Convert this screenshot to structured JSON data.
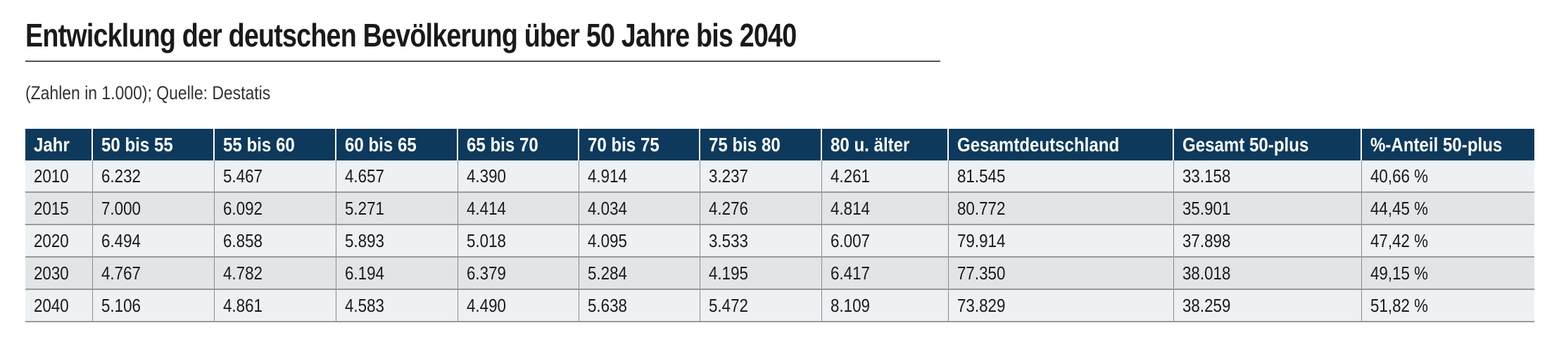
{
  "title": "Entwicklung der deutschen Bevölkerung über 50 Jahre bis 2040",
  "subtitle": "(Zahlen in 1.000); Quelle: Destatis",
  "table": {
    "headers": [
      "Jahr",
      "50 bis 55",
      "55 bis 60",
      "60 bis 65",
      "65 bis 70",
      "70 bis 75",
      "75 bis 80",
      "80 u. älter",
      "Gesamtdeutschland",
      "Gesamt 50-plus",
      "%-Anteil 50-plus"
    ],
    "rows": [
      [
        "2010",
        "6.232",
        "5.467",
        "4.657",
        "4.390",
        "4.914",
        "3.237",
        "4.261",
        "81.545",
        "33.158",
        "40,66 %"
      ],
      [
        "2015",
        "7.000",
        "6.092",
        "5.271",
        "4.414",
        "4.034",
        "4.276",
        "4.814",
        "80.772",
        "35.901",
        "44,45 %"
      ],
      [
        "2020",
        "6.494",
        "6.858",
        "5.893",
        "5.018",
        "4.095",
        "3.533",
        "6.007",
        "79.914",
        "37.898",
        "47,42 %"
      ],
      [
        "2030",
        "4.767",
        "4.782",
        "6.194",
        "6.379",
        "5.284",
        "4.195",
        "6.417",
        "77.350",
        "38.018",
        "49,15 %"
      ],
      [
        "2040",
        "5.106",
        "4.861",
        "4.583",
        "4.490",
        "5.638",
        "5.472",
        "8.109",
        "73.829",
        "38.259",
        "51,82 %"
      ]
    ]
  },
  "colors": {
    "header_bg": "#0d3a5c",
    "row_light": "#eef1f4",
    "row_dark": "#e2e5e8"
  }
}
